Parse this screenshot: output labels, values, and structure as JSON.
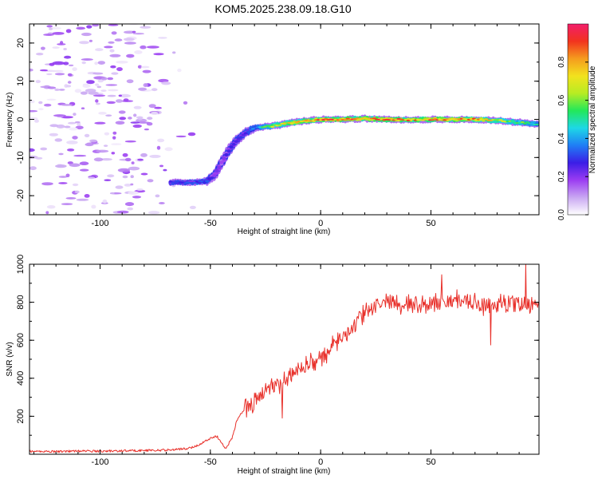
{
  "title": "KOM5.2025.238.09.18.G10",
  "colors": {
    "snr_line": "#e8302a",
    "axis": "#000000",
    "colormap": [
      "#ffffff",
      "#c9a7f2",
      "#9b3cf2",
      "#3b1ee6",
      "#1f7ef5",
      "#1ed8e6",
      "#22e85a",
      "#b7ec23",
      "#f2e21e",
      "#f59c1e",
      "#f2331e",
      "#f21e6b"
    ]
  },
  "chart_data": [
    {
      "type": "heatmap",
      "title": "KOM5.2025.238.09.18.G10",
      "xlabel": "Height of straight line (km)",
      "ylabel": "Frequency (Hz)",
      "xlim": [
        -132,
        99
      ],
      "ylim": [
        -25,
        25
      ],
      "xticks": [
        -100,
        -50,
        0,
        50
      ],
      "yticks": [
        -20,
        -10,
        0,
        10,
        20
      ],
      "colorbar": {
        "label": "Normalized spectral amplitude",
        "range": [
          0,
          1
        ],
        "ticks": [
          "0.0",
          "0.2",
          "0.4",
          "0.6",
          "0.8"
        ]
      },
      "ridge": {
        "x": [
          -68,
          -60,
          -52,
          -48,
          -45,
          -42,
          -38,
          -34,
          -30,
          -26,
          -22,
          -15,
          -8,
          0,
          10,
          20,
          30,
          40,
          50,
          60,
          70,
          80,
          90,
          99
        ],
        "freq": [
          -16.5,
          -16.5,
          -16.3,
          -14.5,
          -11.5,
          -8.5,
          -5.5,
          -3.5,
          -2.2,
          -2,
          -1.8,
          -1,
          -0.5,
          0,
          0,
          0.2,
          0,
          -0.1,
          0,
          0,
          0,
          -0.3,
          -0.8,
          -1.3
        ],
        "amplitude": [
          0.28,
          0.3,
          0.33,
          0.22,
          0.2,
          0.24,
          0.27,
          0.3,
          0.36,
          0.55,
          0.62,
          0.7,
          0.78,
          0.84,
          0.86,
          0.82,
          0.88,
          0.8,
          0.86,
          0.84,
          0.82,
          0.66,
          0.55,
          0.45
        ]
      },
      "noise_region": {
        "x": [
          -132,
          -57
        ],
        "freq": [
          -25,
          25
        ],
        "amplitude_range": [
          0.02,
          0.2
        ]
      }
    },
    {
      "type": "line",
      "xlabel": "Height of straight line (km)",
      "ylabel": "SNR (v/v)",
      "xlim": [
        -132,
        99
      ],
      "ylim": [
        0,
        1000
      ],
      "xticks": [
        -100,
        -50,
        0,
        50
      ],
      "yticks": [
        200,
        400,
        600,
        800,
        1000
      ],
      "series": [
        {
          "name": "SNR",
          "x": [
            -132,
            -120,
            -110,
            -100,
            -90,
            -80,
            -70,
            -60,
            -55,
            -50,
            -47,
            -45,
            -43,
            -40,
            -38,
            -35,
            -30,
            -25,
            -20,
            -15,
            -10,
            -5,
            0,
            5,
            10,
            15,
            20,
            25,
            30,
            35,
            40,
            45,
            50,
            55,
            60,
            65,
            70,
            75,
            80,
            85,
            90,
            95,
            99
          ],
          "y": [
            15,
            15,
            17,
            16,
            18,
            20,
            22,
            30,
            50,
            85,
            95,
            60,
            30,
            90,
            180,
            230,
            280,
            330,
            360,
            400,
            450,
            480,
            500,
            560,
            620,
            680,
            740,
            780,
            810,
            800,
            790,
            780,
            800,
            800,
            810,
            800,
            790,
            780,
            800,
            790,
            800,
            780,
            780
          ]
        }
      ],
      "noise": {
        "start_x": -35,
        "amplitude": 45,
        "spikes": [
          {
            "x": -17.5,
            "y": 190
          },
          {
            "x": 77,
            "y": 575
          },
          {
            "x": 93,
            "y": 1000
          },
          {
            "x": 55,
            "y": 945
          }
        ]
      }
    }
  ]
}
